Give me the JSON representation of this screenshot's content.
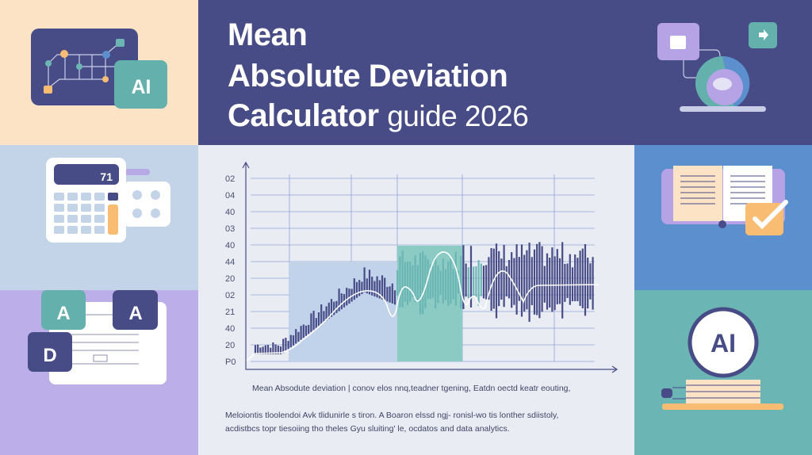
{
  "header": {
    "title_line1": "Mean",
    "title_line2": "Absolute Deviation",
    "title_line3_bold": "Calculator",
    "title_line3_light": "guide 2026"
  },
  "left_panels": {
    "ai_badge": "AI",
    "calculator_display": "71",
    "letter_a1": "A",
    "letter_a2": "A",
    "letter_d": "D"
  },
  "right_panels": {
    "ai_circle": "AI"
  },
  "chart": {
    "y_tick_labels": [
      "02",
      "04",
      "40",
      "03",
      "40",
      "44",
      "20",
      "02",
      "21",
      "40",
      "20",
      "P0"
    ]
  },
  "caption": "Mean Absodute deviation | conov elos nnq,teadner tgening,  Eatdn oectd keatr eouting,",
  "paragraph": {
    "line1": "Meloiontis tloolendoi Avk tlidunirle s tiron. A Boaron elssd ngj- ronisl-wo tis lonther sdiistoly,",
    "line2": "acdistbcs topr tiesoiing  tho theles Gyu sluiting' le, ocdatos and data analytics."
  },
  "colors": {
    "navy": "#474b86",
    "teal": "#6bb6b5",
    "peach": "#fde3c5",
    "lavender": "#bcaee8",
    "blue": "#5b8fcd",
    "orange": "#f8bd72"
  }
}
